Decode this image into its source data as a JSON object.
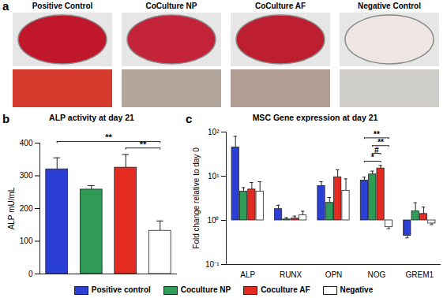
{
  "photo_panel": {
    "label": "a",
    "columns": [
      "Positive Control",
      "CoCulture NP",
      "CoCulture AF",
      "Negative Control"
    ]
  },
  "chart_data": [
    {
      "panel": "b",
      "type": "bar",
      "title": "ALP activity at day 21",
      "y_label": "ALP mU/mL",
      "categories": [
        "Positive control",
        "Coculture NP",
        "Coculture AF",
        "Negative"
      ],
      "values": [
        320,
        258,
        325,
        132
      ],
      "errors": [
        35,
        12,
        40,
        30
      ],
      "colors": [
        "#2b3fd4",
        "#2f9b57",
        "#e32b22",
        "#ffffff"
      ],
      "ylim": [
        0,
        400
      ],
      "yticks": [
        0,
        100,
        200,
        300,
        400
      ],
      "tick_labels": "y",
      "significance": [
        {
          "from": "Coculture AF",
          "to": "Negative",
          "label": "**"
        },
        {
          "from": "Positive control",
          "to": "Negative",
          "label": "**"
        }
      ]
    },
    {
      "panel": "c",
      "type": "bar",
      "title": "MSC Gene expression at day 21",
      "y_label": "Fold change relative to day 0",
      "categories": [
        "ALP",
        "RUNX",
        "OPN",
        "NOG",
        "GREM1"
      ],
      "log": "y",
      "ylim": [
        0.1,
        100
      ],
      "yticks": [
        {
          "value": 0.1,
          "label": "10⁻¹"
        },
        {
          "value": 1,
          "label": "10⁰"
        },
        {
          "value": 10,
          "label": "10¹"
        },
        {
          "value": 100,
          "label": "10²"
        }
      ],
      "legend": "bottom",
      "series": [
        {
          "name": "Positive control",
          "color": "#2b3fd4",
          "values": [
            45,
            1.8,
            6,
            8,
            0.45
          ],
          "errors": [
            35,
            0.4,
            1.5,
            1.5,
            0.05
          ]
        },
        {
          "name": "Coculture NP",
          "color": "#2f9b57",
          "values": [
            4.5,
            1.05,
            2.5,
            11,
            1.6
          ],
          "errors": [
            1,
            0.1,
            0.8,
            2,
            0.9
          ]
        },
        {
          "name": "Coculture AF",
          "color": "#e32b22",
          "values": [
            5,
            1.1,
            9.5,
            15,
            1.4
          ],
          "errors": [
            2.2,
            0.15,
            4.5,
            2.5,
            0.6
          ]
        },
        {
          "name": "Negative",
          "color": "#ffffff",
          "values": [
            4.5,
            1.3,
            4.7,
            0.7,
            0.85
          ],
          "errors": [
            3,
            0.3,
            4,
            0.05,
            0.05
          ]
        }
      ],
      "significance": [
        {
          "category": "NOG",
          "from": "Positive control",
          "to": "Coculture AF",
          "label": "*"
        },
        {
          "category": "NOG",
          "from": "Coculture NP",
          "to": "Coculture AF",
          "label": "#"
        },
        {
          "category": "NOG",
          "from": "Coculture NP",
          "to": "Negative",
          "label": "**"
        },
        {
          "category": "NOG",
          "from": "Positive control",
          "to": "Negative",
          "label": "**"
        }
      ]
    }
  ]
}
